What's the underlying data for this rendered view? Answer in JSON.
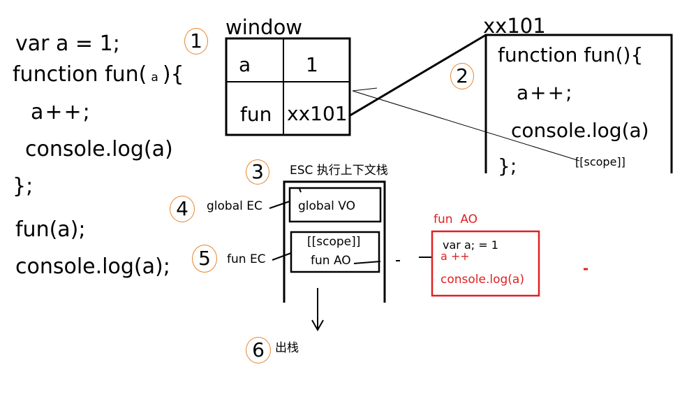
{
  "code": {
    "line1": "var a = 1;",
    "line2a": "function fun(",
    "line2param": "a",
    "line2b": "){",
    "line3": "a++;",
    "line4": "console.log(a)",
    "line5": "};",
    "line6": "fun(a);",
    "line7": "console.log(a);"
  },
  "markers": {
    "m1": "1",
    "m2": "2",
    "m3": "3",
    "m4": "4",
    "m5": "5",
    "m6": "6"
  },
  "window_table": {
    "title": "window",
    "rows": [
      {
        "key": "a",
        "value": "1"
      },
      {
        "key": "fun",
        "value": "xx101"
      }
    ]
  },
  "function_box": {
    "address": "xx101",
    "line1": "function fun(){",
    "line2": "a++;",
    "line3": "console.log(a)",
    "line4": "};",
    "scope_label": "[[scope]]"
  },
  "stack": {
    "title": "ESC 执行上下文栈",
    "global_vo": "global VO",
    "global_ec": "global EC",
    "fun_scope": "[[scope]]",
    "fun_ao": "fun AO",
    "fun_ec": "fun EC",
    "pop_label": "出栈"
  },
  "ao_box": {
    "title": "fun  AO",
    "line1": "var a; = 1",
    "line2": "a ++",
    "line3": "console.log(a)"
  },
  "colors": {
    "annotation": "#e02020",
    "marker_circle": "#e8842c"
  }
}
